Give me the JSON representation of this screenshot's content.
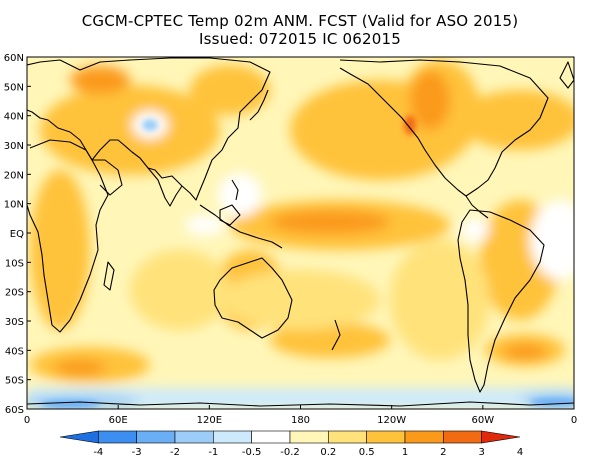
{
  "title": "CGCM-CPTEC Temp 02m ANM. FCST  (Valid for ASO 2015)",
  "issued": "Issued:  072015 IC 062015",
  "lat_labels": [
    "60N",
    "50N",
    "40N",
    "30N",
    "20N",
    "10N",
    "EQ",
    "10S",
    "20S",
    "30S",
    "40S",
    "50S",
    "60S"
  ],
  "lon_labels": [
    "0",
    "60E",
    "120E",
    "180",
    "120W",
    "60W",
    "0"
  ],
  "colorbar": {
    "labels": [
      "-4",
      "-3",
      "-2",
      "-1",
      "-0.5",
      "-0.2",
      "0.2",
      "0.5",
      "1",
      "2",
      "3",
      "4"
    ],
    "colors": [
      "#1e6fe0",
      "#3c8ef0",
      "#6aaef5",
      "#9ccdf8",
      "#cdeafc",
      "#ffffff",
      "#fff6b8",
      "#ffe27a",
      "#ffc23a",
      "#fb9a1a",
      "#f26b12",
      "#e0280a"
    ]
  },
  "anomaly_colors": {
    "white": "#ffffff",
    "light_yellow": "#fff6b8",
    "yellow": "#ffe27a",
    "gold": "#ffc23a",
    "orange": "#fb9a1a",
    "dark_orange": "#f26b12",
    "light_blue": "#cdeafc",
    "blue": "#9ccdf8",
    "mid_blue": "#6aaef5"
  }
}
